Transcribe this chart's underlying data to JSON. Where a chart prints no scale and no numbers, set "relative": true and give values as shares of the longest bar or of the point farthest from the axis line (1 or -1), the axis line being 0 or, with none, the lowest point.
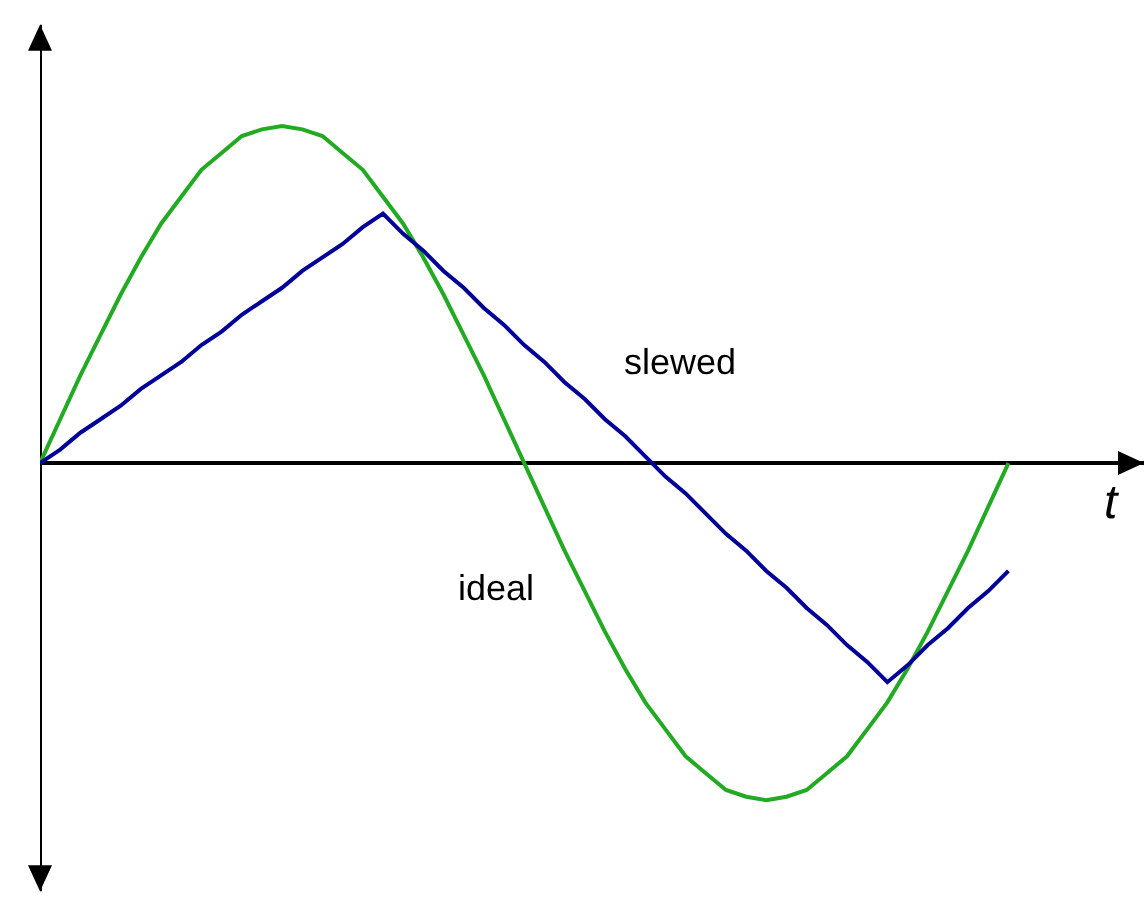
{
  "chart_data": {
    "type": "line",
    "relative": true,
    "xlabel": "t",
    "legend": false,
    "grid": false,
    "marker": "none",
    "categories": [
      null,
      null,
      null,
      null,
      null,
      null,
      null,
      null,
      null,
      null,
      null,
      null,
      null,
      null,
      null,
      null,
      null,
      null,
      null,
      null,
      null,
      null,
      null,
      null,
      null,
      null,
      null,
      null,
      null,
      null,
      null,
      null,
      null,
      null,
      null,
      null,
      null,
      null,
      null,
      null,
      null,
      null,
      null,
      null,
      null,
      null,
      null,
      null,
      null
    ],
    "series": [
      {
        "name": "ideal",
        "color": "#22aa22",
        "values": [
          0,
          0.13,
          0.26,
          0.38,
          0.5,
          0.61,
          0.71,
          0.79,
          0.87,
          0.92,
          0.97,
          0.99,
          1,
          0.99,
          0.97,
          0.92,
          0.87,
          0.79,
          0.71,
          0.61,
          0.5,
          0.38,
          0.26,
          0.13,
          0,
          -0.13,
          -0.26,
          -0.38,
          -0.5,
          -0.61,
          -0.71,
          -0.79,
          -0.87,
          -0.92,
          -0.97,
          -0.99,
          -1,
          -0.99,
          -0.97,
          -0.92,
          -0.87,
          -0.79,
          -0.71,
          -0.61,
          -0.5,
          -0.38,
          -0.26,
          -0.13,
          0
        ]
      },
      {
        "name": "slewed",
        "color": "#000099",
        "values": [
          0,
          0.04,
          0.09,
          0.13,
          0.17,
          0.22,
          0.26,
          0.3,
          0.35,
          0.39,
          0.44,
          0.48,
          0.52,
          0.57,
          0.61,
          0.65,
          0.7,
          0.74,
          0.68,
          0.63,
          0.57,
          0.52,
          0.46,
          0.41,
          0.35,
          0.3,
          0.24,
          0.19,
          0.13,
          0.08,
          0.02,
          -0.04,
          -0.09,
          -0.15,
          -0.21,
          -0.26,
          -0.32,
          -0.37,
          -0.43,
          -0.48,
          -0.54,
          -0.59,
          -0.65,
          -0.6,
          -0.54,
          -0.49,
          -0.43,
          -0.38,
          -0.32
        ]
      }
    ]
  }
}
